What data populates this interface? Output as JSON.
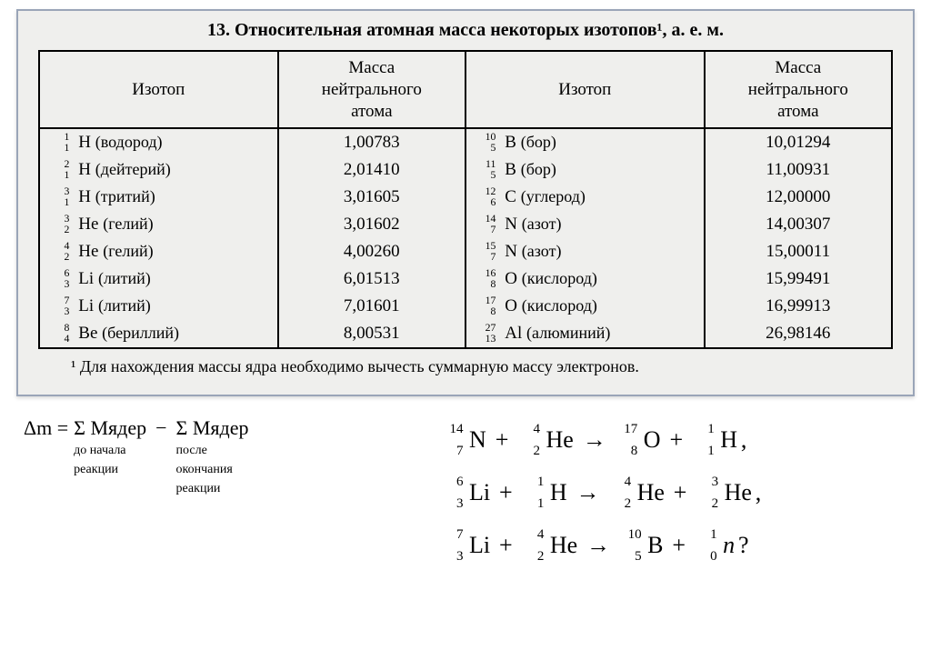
{
  "title": "13. Относительная атомная масса некоторых изотопов¹, а. е. м.",
  "headers": {
    "iso": "Изотоп",
    "mass": "Масса\nнейтрального\nатома"
  },
  "rows_left": [
    {
      "a": "1",
      "z": "1",
      "sym": "H",
      "name": "(водород)",
      "mass": "1,00783"
    },
    {
      "a": "2",
      "z": "1",
      "sym": "H",
      "name": "(дейтерий)",
      "mass": "2,01410"
    },
    {
      "a": "3",
      "z": "1",
      "sym": "H",
      "name": "(тритий)",
      "mass": "3,01605"
    },
    {
      "a": "3",
      "z": "2",
      "sym": "He",
      "name": "(гелий)",
      "mass": "3,01602"
    },
    {
      "a": "4",
      "z": "2",
      "sym": "He",
      "name": "(гелий)",
      "mass": "4,00260"
    },
    {
      "a": "6",
      "z": "3",
      "sym": "Li",
      "name": "(литий)",
      "mass": "6,01513"
    },
    {
      "a": "7",
      "z": "3",
      "sym": "Li",
      "name": "(литий)",
      "mass": "7,01601"
    },
    {
      "a": "8",
      "z": "4",
      "sym": "Be",
      "name": "(бериллий)",
      "mass": "8,00531"
    }
  ],
  "rows_right": [
    {
      "a": "10",
      "z": "5",
      "sym": "B",
      "name": "(бор)",
      "mass": "10,01294"
    },
    {
      "a": "11",
      "z": "5",
      "sym": "B",
      "name": "(бор)",
      "mass": "11,00931"
    },
    {
      "a": "12",
      "z": "6",
      "sym": "C",
      "name": "(углерод)",
      "mass": "12,00000"
    },
    {
      "a": "14",
      "z": "7",
      "sym": "N",
      "name": "(азот)",
      "mass": "14,00307"
    },
    {
      "a": "15",
      "z": "7",
      "sym": "N",
      "name": "(азот)",
      "mass": "15,00011"
    },
    {
      "a": "16",
      "z": "8",
      "sym": "O",
      "name": "(кислород)",
      "mass": "15,99491"
    },
    {
      "a": "17",
      "z": "8",
      "sym": "O",
      "name": "(кислород)",
      "mass": "16,99913"
    },
    {
      "a": "27",
      "z": "13",
      "sym": "Al",
      "name": "(алюминий)",
      "mass": "26,98146"
    }
  ],
  "footnote": "¹ Для нахождения массы ядра необходимо вычесть суммарную массу электронов.",
  "hand": {
    "lhs": "Δm =",
    "term1": "Σ Mядер",
    "sub1a": "до начала",
    "sub1b": "реакции",
    "minus": "−",
    "term2": "Σ Mядер",
    "sub2a": "после",
    "sub2b": "окончания",
    "sub2c": "реакции"
  },
  "reactions": [
    [
      {
        "a": "14",
        "z": "7",
        "sym": "N"
      },
      "+",
      {
        "a": "4",
        "z": "2",
        "sym": "He"
      },
      "→",
      {
        "a": "17",
        "z": "8",
        "sym": "O"
      },
      "+",
      {
        "a": "1",
        "z": "1",
        "sym": "H"
      },
      ","
    ],
    [
      {
        "a": "6",
        "z": "3",
        "sym": "Li"
      },
      "+",
      {
        "a": "1",
        "z": "1",
        "sym": "H"
      },
      "→",
      {
        "a": "4",
        "z": "2",
        "sym": "He"
      },
      "+",
      {
        "a": "3",
        "z": "2",
        "sym": "He"
      },
      ","
    ],
    [
      {
        "a": "7",
        "z": "3",
        "sym": "Li"
      },
      "+",
      {
        "a": "4",
        "z": "2",
        "sym": "He"
      },
      "→",
      {
        "a": "10",
        "z": "5",
        "sym": "B"
      },
      "+",
      {
        "a": "1",
        "z": "0",
        "sym": "n",
        "italic": true
      },
      "?"
    ]
  ],
  "style": {
    "page_bg": "#efefed",
    "border_color": "#000000",
    "outer_border": "#9aa5b8",
    "text_color": "#000000",
    "title_fontsize": 20,
    "cell_fontsize": 19,
    "footnote_fontsize": 18,
    "hand_fontsize": 22,
    "rxn_fontsize": 26
  }
}
